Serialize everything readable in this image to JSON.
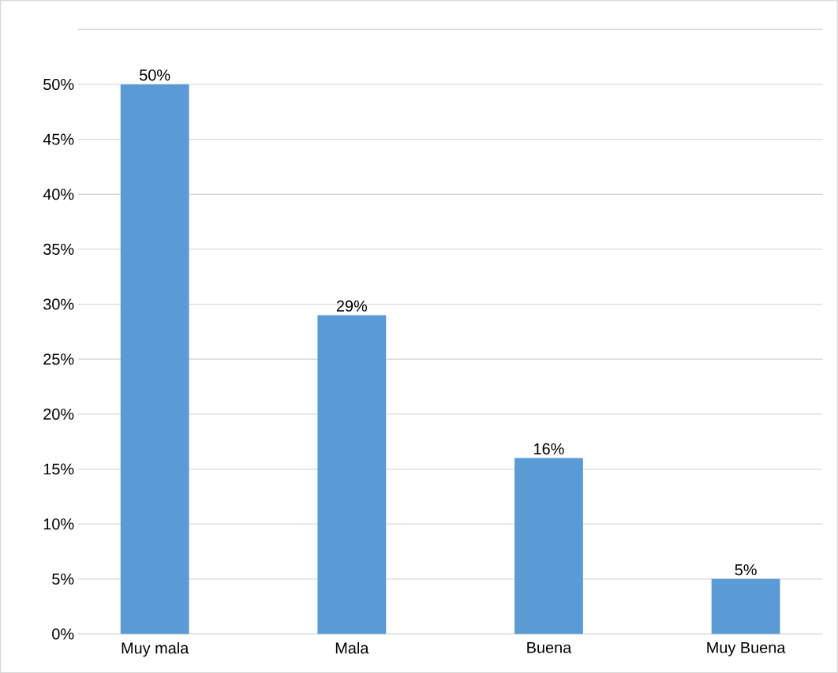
{
  "chart_data": {
    "type": "bar",
    "categories": [
      "Muy mala",
      "Mala",
      "Buena",
      "Muy Buena"
    ],
    "values": [
      50,
      29,
      16,
      5
    ],
    "color": "#5b9bd5",
    "value_labels": [
      "50%",
      "29%",
      "16%",
      "5%"
    ],
    "ylim": [
      0,
      55
    ],
    "yticks": [
      {
        "value": 0,
        "label": "0%"
      },
      {
        "value": 5,
        "label": "5%"
      },
      {
        "value": 10,
        "label": "10%"
      },
      {
        "value": 15,
        "label": "15%"
      },
      {
        "value": 20,
        "label": "20%"
      },
      {
        "value": 25,
        "label": "25%"
      },
      {
        "value": 30,
        "label": "30%"
      },
      {
        "value": 35,
        "label": "35%"
      },
      {
        "value": 40,
        "label": "40%"
      },
      {
        "value": 45,
        "label": "45%"
      },
      {
        "value": 50,
        "label": "50%"
      },
      {
        "value": 55,
        "label": null
      }
    ],
    "grid": "y"
  }
}
